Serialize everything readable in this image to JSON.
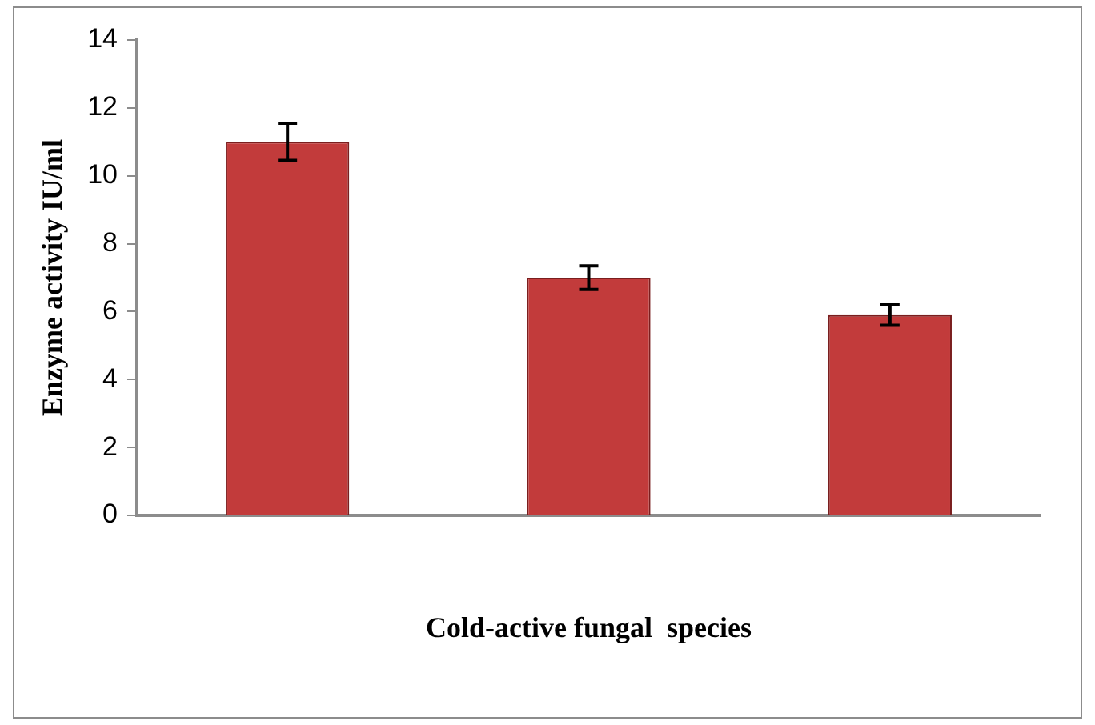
{
  "chart_data": {
    "type": "bar",
    "xlabel": "Cold-active fungal  species",
    "ylabel": "Enzyme activity IU/ml",
    "categories": [
      null,
      null,
      null
    ],
    "series": [
      {
        "color": "#c23b3b",
        "values": [
          11,
          7,
          5.9
        ],
        "errors": [
          0.55,
          0.35,
          0.3
        ]
      }
    ],
    "ylim": [
      0,
      14
    ],
    "yticks": [
      0,
      2,
      4,
      6,
      8,
      10,
      12,
      14
    ],
    "grid": false,
    "legend": false
  }
}
